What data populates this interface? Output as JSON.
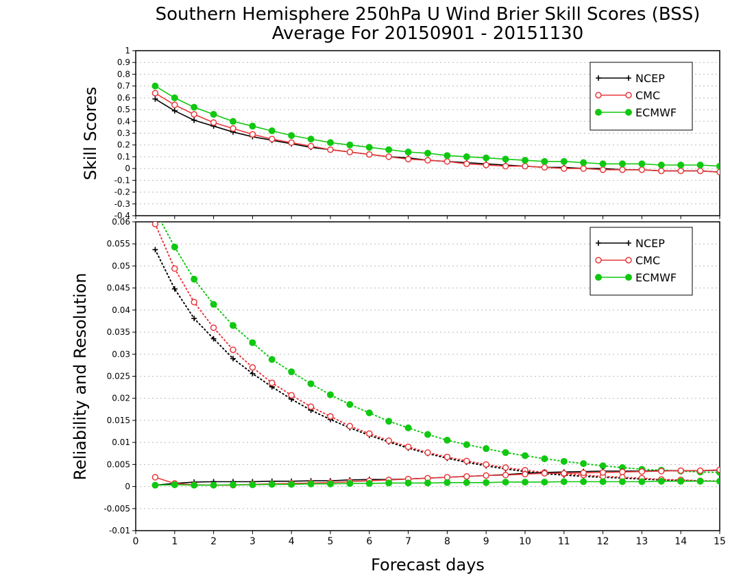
{
  "header": {
    "title_line1": "Southern Hemisphere 250hPa U Wind Brier Skill Scores (BSS)",
    "title_line2": "Average For 20150901 - 20151130"
  },
  "colors": {
    "NCEP": "#000000",
    "CMC": "#e8383b",
    "ECMWF": "#11c811"
  },
  "chart_data": [
    {
      "type": "line",
      "panel": "top",
      "ylabel": "Skill Scores",
      "xlabel": "",
      "xlim": [
        0,
        15
      ],
      "ylim": [
        -0.4,
        1
      ],
      "xticks": [
        "0",
        "1",
        "2",
        "3",
        "4",
        "5",
        "6",
        "7",
        "8",
        "9",
        "10",
        "11",
        "12",
        "13",
        "14",
        "15"
      ],
      "yticks": [
        "-0.4",
        "-0.3",
        "-0.2",
        "-0.1",
        "0",
        "0.1",
        "0.2",
        "0.3",
        "0.4",
        "0.5",
        "0.6",
        "0.7",
        "0.8",
        "0.9",
        "1"
      ],
      "grid": true,
      "legend_position": "top-right",
      "x": [
        0.5,
        1,
        1.5,
        2,
        2.5,
        3,
        3.5,
        4,
        4.5,
        5,
        5.5,
        6,
        6.5,
        7,
        7.5,
        8,
        8.5,
        9,
        9.5,
        10,
        10.5,
        11,
        11.5,
        12,
        12.5,
        13,
        13.5,
        14,
        14.5,
        15
      ],
      "series": [
        {
          "name": "NCEP",
          "marker": "plus",
          "style": "solid",
          "values": [
            0.59,
            0.49,
            0.41,
            0.36,
            0.31,
            0.27,
            0.24,
            0.21,
            0.18,
            0.16,
            0.14,
            0.12,
            0.1,
            0.09,
            0.07,
            0.06,
            0.05,
            0.04,
            0.03,
            0.02,
            0.01,
            0.01,
            0.0,
            0.0,
            -0.01,
            -0.01,
            -0.02,
            -0.02,
            -0.02,
            -0.03
          ]
        },
        {
          "name": "CMC",
          "marker": "open-circle",
          "style": "solid",
          "values": [
            0.64,
            0.54,
            0.46,
            0.39,
            0.34,
            0.29,
            0.25,
            0.22,
            0.19,
            0.16,
            0.14,
            0.12,
            0.1,
            0.08,
            0.07,
            0.06,
            0.04,
            0.03,
            0.02,
            0.02,
            0.01,
            0.0,
            0.0,
            -0.01,
            -0.01,
            -0.01,
            -0.02,
            -0.02,
            -0.02,
            -0.03
          ]
        },
        {
          "name": "ECMWF",
          "marker": "filled-circle",
          "style": "solid",
          "values": [
            0.7,
            0.6,
            0.52,
            0.46,
            0.4,
            0.36,
            0.32,
            0.28,
            0.25,
            0.22,
            0.2,
            0.18,
            0.16,
            0.14,
            0.13,
            0.11,
            0.1,
            0.09,
            0.08,
            0.07,
            0.06,
            0.06,
            0.05,
            0.04,
            0.04,
            0.04,
            0.03,
            0.03,
            0.03,
            0.02
          ]
        }
      ]
    },
    {
      "type": "line",
      "panel": "bottom",
      "ylabel": "Reliability and Resolution",
      "xlabel": "Forecast days",
      "xlim": [
        0,
        15
      ],
      "ylim": [
        -0.01,
        0.06
      ],
      "xticks": [
        "0",
        "1",
        "2",
        "3",
        "4",
        "5",
        "6",
        "7",
        "8",
        "9",
        "10",
        "11",
        "12",
        "13",
        "14",
        "15"
      ],
      "yticks": [
        "-0.01",
        "-0.005",
        "0",
        "0.005",
        "0.01",
        "0.015",
        "0.02",
        "0.025",
        "0.03",
        "0.035",
        "0.04",
        "0.045",
        "0.05",
        "0.055",
        "0.06"
      ],
      "grid": true,
      "legend_position": "top-right",
      "x": [
        0.5,
        1,
        1.5,
        2,
        2.5,
        3,
        3.5,
        4,
        4.5,
        5,
        5.5,
        6,
        6.5,
        7,
        7.5,
        8,
        8.5,
        9,
        9.5,
        10,
        10.5,
        11,
        11.5,
        12,
        12.5,
        13,
        13.5,
        14,
        14.5,
        15
      ],
      "series": [
        {
          "name": "NCEP",
          "marker": "plus",
          "style": "solid",
          "values": [
            0.0003,
            0.0007,
            0.001,
            0.0011,
            0.0011,
            0.0011,
            0.0012,
            0.0012,
            0.0013,
            0.0013,
            0.0015,
            0.0016,
            0.0016,
            0.0017,
            0.0019,
            0.0021,
            0.0023,
            0.0025,
            0.0027,
            0.003,
            0.0032,
            0.0033,
            0.0034,
            0.0035,
            0.0035,
            0.0035,
            0.0036,
            0.0036,
            0.0036,
            0.0037
          ]
        },
        {
          "name": "CMC",
          "marker": "open-circle",
          "style": "solid",
          "values": [
            0.0021,
            0.0007,
            0.0004,
            0.0003,
            0.0003,
            0.0005,
            0.0006,
            0.0007,
            0.0008,
            0.0009,
            0.0011,
            0.0013,
            0.0015,
            0.0017,
            0.0019,
            0.0021,
            0.0023,
            0.0025,
            0.0026,
            0.0028,
            0.003,
            0.003,
            0.0031,
            0.0032,
            0.0033,
            0.0034,
            0.0035,
            0.0036,
            0.0036,
            0.0038
          ]
        },
        {
          "name": "ECMWF",
          "marker": "filled-circle",
          "style": "solid",
          "values": [
            0.0003,
            0.0004,
            0.0003,
            0.0003,
            0.0004,
            0.0004,
            0.0005,
            0.0005,
            0.0006,
            0.0006,
            0.0007,
            0.0007,
            0.0008,
            0.0008,
            0.0008,
            0.0009,
            0.0009,
            0.0009,
            0.001,
            0.001,
            0.001,
            0.0011,
            0.0011,
            0.0011,
            0.0011,
            0.0011,
            0.0012,
            0.0012,
            0.0012,
            0.0012
          ]
        },
        {
          "name": "NCEP",
          "marker": "plus",
          "style": "dotted",
          "values": [
            0.0537,
            0.0448,
            0.0381,
            0.0335,
            0.029,
            0.0256,
            0.0226,
            0.0198,
            0.0173,
            0.0152,
            0.0133,
            0.0116,
            0.0101,
            0.0087,
            0.0075,
            0.0064,
            0.0055,
            0.0047,
            0.004,
            0.0034,
            0.0029,
            0.0026,
            0.0023,
            0.0021,
            0.0019,
            0.0017,
            0.0015,
            0.0014,
            0.0013,
            0.0012
          ]
        },
        {
          "name": "CMC",
          "marker": "open-circle",
          "style": "dotted",
          "values": [
            0.0595,
            0.0494,
            0.0418,
            0.036,
            0.031,
            0.027,
            0.0235,
            0.0207,
            0.0181,
            0.0159,
            0.0137,
            0.012,
            0.0104,
            0.009,
            0.0077,
            0.0067,
            0.0058,
            0.005,
            0.0043,
            0.0037,
            0.0032,
            0.0029,
            0.0026,
            0.0023,
            0.0021,
            0.0019,
            0.0016,
            0.0015,
            0.0013,
            0.0012
          ]
        },
        {
          "name": "ECMWF",
          "marker": "filled-circle",
          "style": "dotted",
          "values": [
            0.0625,
            0.0543,
            0.047,
            0.0413,
            0.0365,
            0.0326,
            0.0288,
            0.026,
            0.0233,
            0.0208,
            0.0186,
            0.0167,
            0.0148,
            0.0133,
            0.0118,
            0.0105,
            0.0095,
            0.0086,
            0.0077,
            0.007,
            0.0063,
            0.0057,
            0.0052,
            0.0047,
            0.0043,
            0.0039,
            0.0037,
            0.0035,
            0.0033,
            0.0032
          ]
        }
      ]
    }
  ]
}
